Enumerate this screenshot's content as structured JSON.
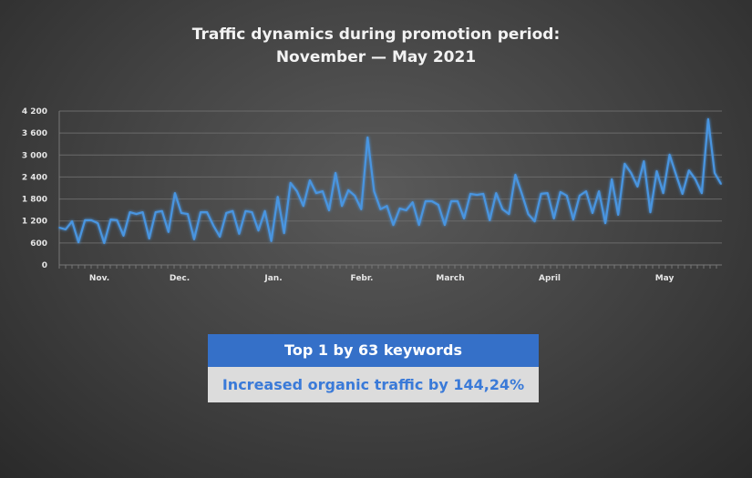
{
  "title_line1": "Traffic dynamics during promotion period:",
  "title_line2": "November — May 2021",
  "highlight": "Top 1 by 63 keywords",
  "result": "Increased organic traffic by 144,24%",
  "chart_data": {
    "type": "line",
    "title": "Traffic dynamics during promotion period: November — May 2021",
    "xlabel": "",
    "ylabel": "",
    "ylim": [
      0,
      4200
    ],
    "yticks": [
      "0",
      "600",
      "1 200",
      "1 800",
      "2 400",
      "3 000",
      "3 600",
      "4 200"
    ],
    "ytick_values": [
      0,
      600,
      1200,
      1800,
      2400,
      3000,
      3600,
      4200
    ],
    "month_labels": [
      "Nov.",
      "Dec.",
      "Jan.",
      "Febr.",
      "March",
      "April",
      "May"
    ],
    "grid": true,
    "line_color": "#4a95e0",
    "values": [
      1020,
      970,
      1190,
      620,
      1220,
      1220,
      1140,
      600,
      1240,
      1220,
      800,
      1440,
      1390,
      1440,
      720,
      1440,
      1470,
      900,
      1960,
      1420,
      1390,
      700,
      1440,
      1440,
      1070,
      770,
      1420,
      1470,
      850,
      1470,
      1440,
      940,
      1470,
      650,
      1860,
      870,
      2240,
      2010,
      1610,
      2310,
      1960,
      2010,
      1490,
      2510,
      1610,
      2040,
      1890,
      1520,
      3480,
      2010,
      1520,
      1610,
      1090,
      1540,
      1490,
      1710,
      1090,
      1740,
      1740,
      1640,
      1090,
      1740,
      1740,
      1270,
      1940,
      1910,
      1940,
      1220,
      1960,
      1520,
      1390,
      2460,
      1940,
      1390,
      1190,
      1940,
      1960,
      1270,
      1990,
      1890,
      1240,
      1890,
      2010,
      1420,
      2010,
      1140,
      2340,
      1370,
      2760,
      2510,
      2140,
      2830,
      1440,
      2560,
      1960,
      3010,
      2460,
      1940,
      2580,
      2340,
      1960,
      3980,
      2510,
      2210
    ]
  }
}
